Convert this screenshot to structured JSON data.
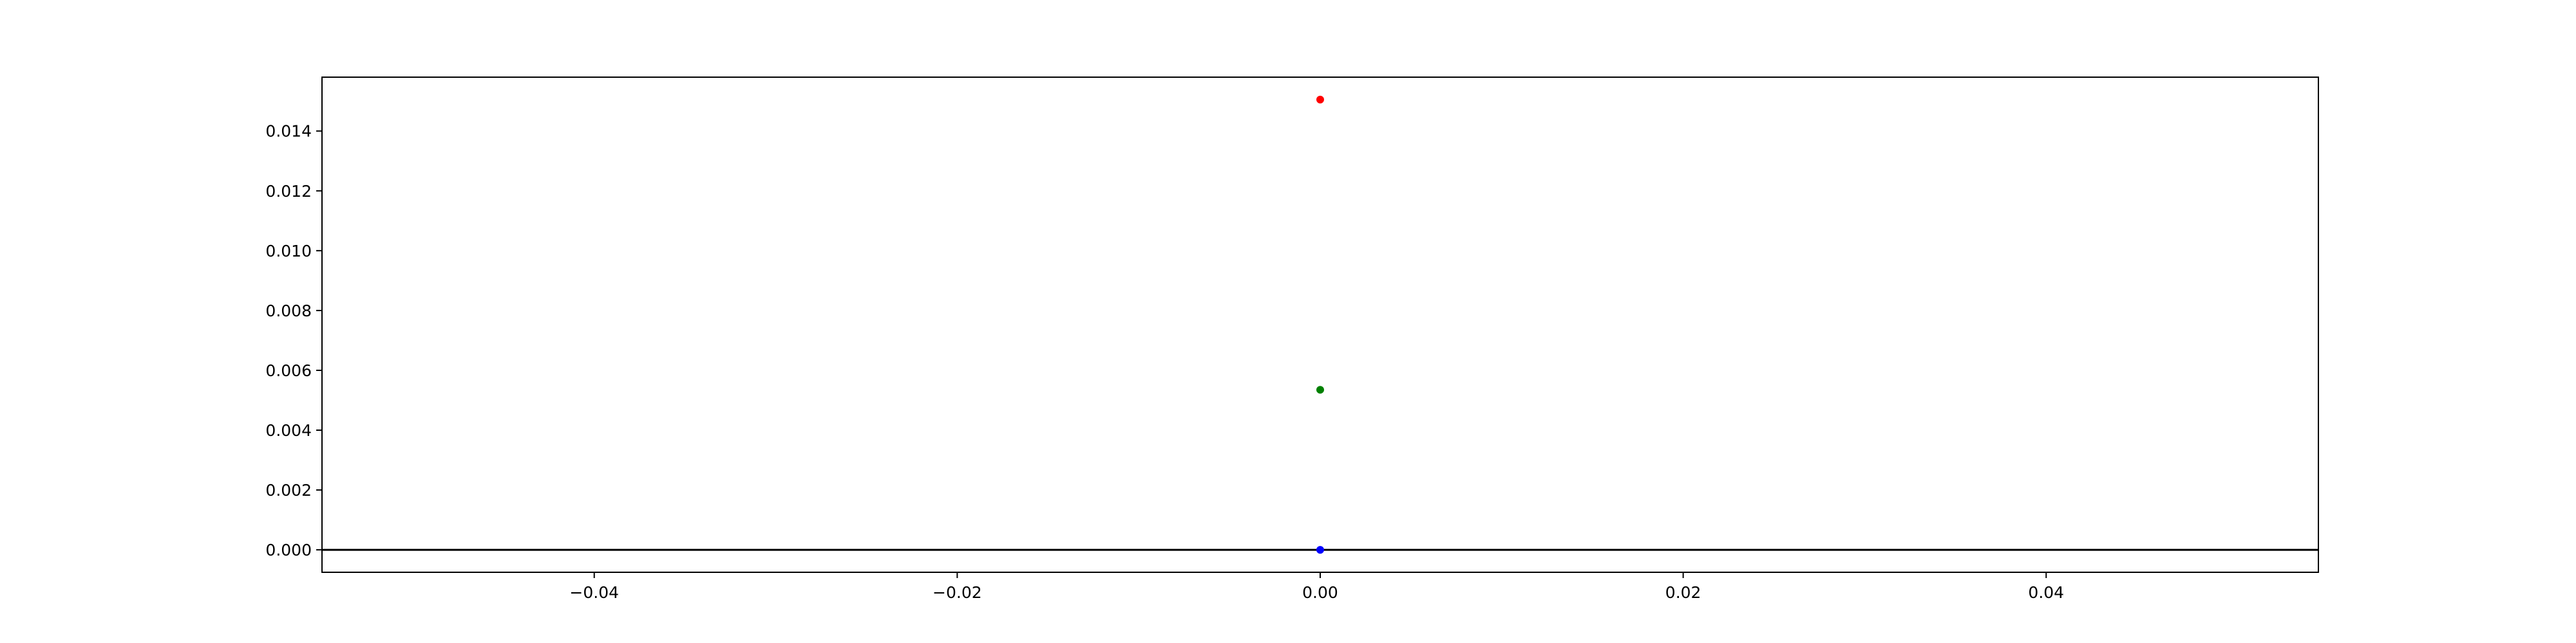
{
  "chart_data": {
    "type": "scatter",
    "title": "",
    "xlabel": "",
    "ylabel": "",
    "xlim": [
      -0.055,
      0.055
    ],
    "ylim": [
      -0.00075,
      0.0158
    ],
    "grid": false,
    "x_ticks": [
      {
        "value": -0.04,
        "label": "−0.04"
      },
      {
        "value": -0.02,
        "label": "−0.02"
      },
      {
        "value": 0.0,
        "label": "0.00"
      },
      {
        "value": 0.02,
        "label": "0.02"
      },
      {
        "value": 0.04,
        "label": "0.04"
      }
    ],
    "y_ticks": [
      {
        "value": 0.0,
        "label": "0.000"
      },
      {
        "value": 0.002,
        "label": "0.002"
      },
      {
        "value": 0.004,
        "label": "0.004"
      },
      {
        "value": 0.006,
        "label": "0.006"
      },
      {
        "value": 0.008,
        "label": "0.008"
      },
      {
        "value": 0.01,
        "label": "0.010"
      },
      {
        "value": 0.012,
        "label": "0.012"
      },
      {
        "value": 0.014,
        "label": "0.014"
      }
    ],
    "horizontal_lines": [
      {
        "y": 0,
        "color": "#000000"
      }
    ],
    "points": [
      {
        "x": 0,
        "y": 0.01505,
        "color": "#ff0000"
      },
      {
        "x": 0,
        "y": 0.00535,
        "color": "#008000"
      },
      {
        "x": 0,
        "y": 0.0,
        "color": "#0000ff"
      }
    ]
  }
}
